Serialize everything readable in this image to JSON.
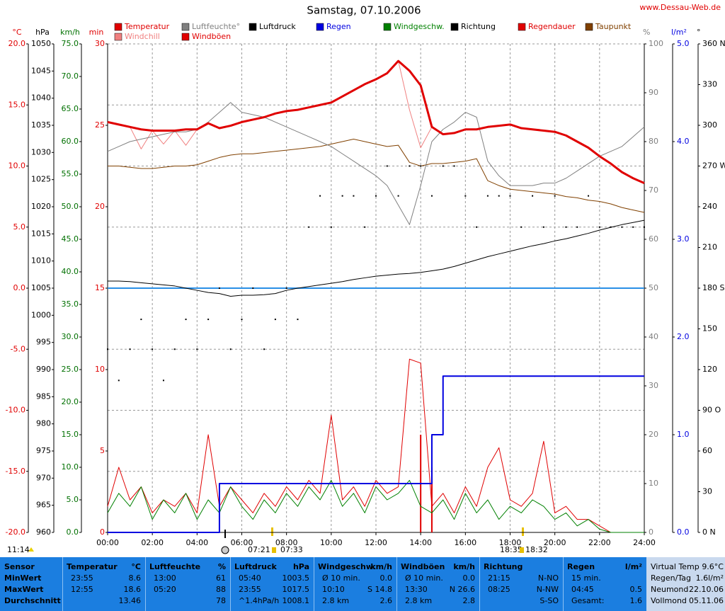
{
  "chart_data": {
    "type": "line",
    "title": "Samstag, 07.10.2006",
    "source": "www.Dessau-Web.de",
    "grid": true,
    "x": [
      0,
      0.5,
      1,
      1.5,
      2,
      2.5,
      3,
      3.5,
      4,
      4.5,
      5,
      5.5,
      6,
      6.5,
      7,
      7.5,
      8,
      8.5,
      9,
      9.5,
      10,
      10.5,
      11,
      11.5,
      12,
      12.5,
      13,
      13.5,
      14,
      14.5,
      15,
      15.5,
      16,
      16.5,
      17,
      17.5,
      18,
      18.5,
      19,
      19.5,
      20,
      20.5,
      21,
      21.5,
      22,
      22.5,
      23,
      23.5,
      24
    ],
    "xlim": [
      0,
      24
    ],
    "xticks": [
      {
        "value": 0,
        "label": "00:00"
      },
      {
        "value": 2,
        "label": "02:00"
      },
      {
        "value": 4,
        "label": "04:00"
      },
      {
        "value": 6,
        "label": "06:00"
      },
      {
        "value": 8,
        "label": "08:00"
      },
      {
        "value": 10,
        "label": "10:00"
      },
      {
        "value": 12,
        "label": "12:00"
      },
      {
        "value": 14,
        "label": "14:00"
      },
      {
        "value": 16,
        "label": "16:00"
      },
      {
        "value": 18,
        "label": "18:00"
      },
      {
        "value": 20,
        "label": "20:00"
      },
      {
        "value": 22,
        "label": "22:00"
      },
      {
        "value": 24,
        "label": "24:00"
      }
    ],
    "axes": [
      {
        "unit": "°C",
        "side": "left",
        "color": "#e00000",
        "lim": [
          -20,
          20
        ],
        "ticks": [
          {
            "value": -20,
            "label": "-20.0"
          },
          {
            "value": -15,
            "label": "-15.0"
          },
          {
            "value": -10,
            "label": "-10.0"
          },
          {
            "value": -5,
            "label": "-5.0"
          },
          {
            "value": 0,
            "label": "0.0"
          },
          {
            "value": 5,
            "label": "5.0"
          },
          {
            "value": 10,
            "label": "10.0"
          },
          {
            "value": 15,
            "label": "15.0"
          },
          {
            "value": 20,
            "label": "20.0"
          }
        ]
      },
      {
        "unit": "hPa",
        "side": "left",
        "color": "#000000",
        "lim": [
          960,
          1050
        ],
        "ticks": [
          960,
          965,
          970,
          975,
          980,
          985,
          990,
          995,
          1000,
          1005,
          1010,
          1015,
          1020,
          1025,
          1030,
          1035,
          1040,
          1045,
          1050
        ]
      },
      {
        "unit": "km/h",
        "side": "left",
        "color": "#007000",
        "lim": [
          0,
          75
        ],
        "ticks": [
          {
            "value": 0,
            "label": "0.0"
          },
          {
            "value": 5,
            "label": "5.0"
          },
          {
            "value": 10,
            "label": "10.0"
          },
          {
            "value": 15,
            "label": "15.0"
          },
          {
            "value": 20,
            "label": "20.0"
          },
          {
            "value": 25,
            "label": "25.0"
          },
          {
            "value": 30,
            "label": "30.0"
          },
          {
            "value": 35,
            "label": "35.0"
          },
          {
            "value": 40,
            "label": "40.0"
          },
          {
            "value": 45,
            "label": "45.0"
          },
          {
            "value": 50,
            "label": "50.0"
          },
          {
            "value": 55,
            "label": "55.0"
          },
          {
            "value": 60,
            "label": "60.0"
          },
          {
            "value": 65,
            "label": "65.0"
          },
          {
            "value": 70,
            "label": "70.0"
          },
          {
            "value": 75,
            "label": "75.0"
          }
        ]
      },
      {
        "unit": "min",
        "side": "left",
        "color": "#e00000",
        "lim": [
          0,
          30
        ],
        "ticks": [
          0,
          5,
          10,
          15,
          20,
          25,
          30
        ]
      },
      {
        "unit": "%",
        "side": "right",
        "color": "#808080",
        "lim": [
          0,
          100
        ],
        "ticks": [
          0,
          10,
          20,
          30,
          40,
          50,
          60,
          70,
          80,
          90,
          100
        ]
      },
      {
        "unit": "l/m²",
        "side": "right",
        "color": "#0000e0",
        "lim": [
          0,
          5
        ],
        "ticks": [
          {
            "value": 0,
            "label": "0.0"
          },
          {
            "value": 1,
            "label": "1.0"
          },
          {
            "value": 2,
            "label": "2.0"
          },
          {
            "value": 3,
            "label": "3.0"
          },
          {
            "value": 4,
            "label": "4.0"
          },
          {
            "value": 5,
            "label": "5.0"
          }
        ]
      },
      {
        "unit": "°",
        "side": "right",
        "color": "#000000",
        "lim": [
          0,
          360
        ],
        "ticks": [
          {
            "value": 0,
            "label": "0 N"
          },
          30,
          60,
          {
            "value": 90,
            "label": "90 O"
          },
          120,
          150,
          {
            "value": 180,
            "label": "180 S"
          },
          210,
          240,
          {
            "value": 270,
            "label": "270 W"
          },
          300,
          330,
          {
            "value": 360,
            "label": "360 N"
          }
        ]
      }
    ],
    "reference_line": {
      "axis": "°C",
      "value": 0,
      "color": "#2a8fe6"
    },
    "series": [
      {
        "name": "Temperatur",
        "color": "#e00000",
        "axis": "°C",
        "mark": "line",
        "line_width": 3,
        "values": [
          13.6,
          13.4,
          13.2,
          13.0,
          12.9,
          12.9,
          12.9,
          13.0,
          13.0,
          13.5,
          13.1,
          13.3,
          13.6,
          13.8,
          14.0,
          14.3,
          14.5,
          14.6,
          14.8,
          15.0,
          15.2,
          15.7,
          16.2,
          16.7,
          17.1,
          17.6,
          18.6,
          17.8,
          16.6,
          13.2,
          12.6,
          12.7,
          13.0,
          13.0,
          13.2,
          13.3,
          13.4,
          13.1,
          13.0,
          12.9,
          12.8,
          12.5,
          12.0,
          11.5,
          10.8,
          10.2,
          9.5,
          9.0,
          8.6
        ]
      },
      {
        "name": "Luftfeuchte°",
        "color": "#808080",
        "axis": "%",
        "mark": "line",
        "values": [
          78,
          79,
          80,
          80.5,
          81,
          81.5,
          82,
          82,
          82.5,
          84,
          86,
          88,
          86,
          85.5,
          85,
          84,
          83,
          82,
          81,
          80,
          79,
          77.5,
          76,
          74.5,
          73,
          71,
          67,
          63,
          71,
          80,
          82.5,
          84,
          86,
          85,
          76,
          73,
          71,
          71,
          71,
          71.5,
          71.5,
          72.5,
          74,
          75.5,
          77,
          78,
          79,
          81,
          83
        ]
      },
      {
        "name": "Luftdruck",
        "color": "#000000",
        "axis": "hPa",
        "mark": "line",
        "values": [
          1006.3,
          1006.3,
          1006.2,
          1006.0,
          1005.8,
          1005.6,
          1005.4,
          1005.0,
          1004.6,
          1004.2,
          1004.0,
          1003.5,
          1003.7,
          1003.7,
          1003.8,
          1004.0,
          1004.6,
          1005.0,
          1005.3,
          1005.6,
          1005.9,
          1006.2,
          1006.6,
          1006.9,
          1007.2,
          1007.4,
          1007.6,
          1007.7,
          1007.9,
          1008.2,
          1008.5,
          1009.0,
          1009.6,
          1010.2,
          1010.8,
          1011.3,
          1011.8,
          1012.3,
          1012.8,
          1013.2,
          1013.7,
          1014.1,
          1014.6,
          1015.1,
          1015.7,
          1016.2,
          1016.7,
          1017.1,
          1017.5
        ]
      },
      {
        "name": "Regen",
        "color": "#0000e0",
        "axis": "l/m²",
        "mark": "step",
        "line_width": 2,
        "values": [
          0,
          0,
          0,
          0,
          0,
          0,
          0,
          0,
          0,
          0,
          0.5,
          0.5,
          0.5,
          0.5,
          0.5,
          0.5,
          0.5,
          0.5,
          0.5,
          0.5,
          0.5,
          0.5,
          0.5,
          0.5,
          0.5,
          0.5,
          0.5,
          0.5,
          0.5,
          1.0,
          1.6,
          1.6,
          1.6,
          1.6,
          1.6,
          1.6,
          1.6,
          1.6,
          1.6,
          1.6,
          1.6,
          1.6,
          1.6,
          1.6,
          1.6,
          1.6,
          1.6,
          1.6,
          1.6
        ]
      },
      {
        "name": "Windgeschw.",
        "color": "#008000",
        "axis": "km/h",
        "mark": "line",
        "values": [
          3,
          6,
          4,
          7,
          2,
          5,
          3,
          6,
          2,
          5,
          3,
          7,
          4,
          2,
          5,
          3,
          6,
          4,
          7,
          5,
          8,
          4,
          6,
          3,
          7,
          5,
          6,
          8,
          4,
          3,
          5,
          2,
          6,
          3,
          5,
          2,
          4,
          3,
          5,
          4,
          2,
          3,
          1,
          2,
          0.5,
          0,
          0,
          0,
          0
        ]
      },
      {
        "name": "Richtung",
        "color": "#000000",
        "axis": "°",
        "mark": "dots",
        "values": [
          135,
          112,
          135,
          157,
          135,
          112,
          135,
          157,
          135,
          157,
          180,
          135,
          157,
          180,
          135,
          157,
          180,
          157,
          225,
          248,
          225,
          248,
          248,
          225,
          248,
          270,
          248,
          270,
          270,
          248,
          270,
          270,
          248,
          225,
          248,
          248,
          248,
          225,
          248,
          225,
          248,
          225,
          225,
          248,
          225,
          225,
          225,
          225,
          225
        ]
      },
      {
        "name": "Regendauer",
        "color": "#e00000",
        "axis": "min",
        "mark": "impulse",
        "values": [
          0,
          0,
          0,
          0,
          0,
          0,
          0,
          0,
          0,
          0,
          0,
          0,
          0,
          0,
          0,
          0,
          0,
          0,
          0,
          0,
          0,
          0,
          0,
          0,
          0,
          0,
          0,
          0,
          6,
          4,
          0,
          0,
          0,
          0,
          0,
          0,
          0,
          0,
          0,
          0,
          0,
          0,
          0,
          0,
          0,
          0,
          0,
          0,
          0
        ]
      },
      {
        "name": "Taupunkt",
        "color": "#804000",
        "axis": "°C",
        "mark": "line",
        "values": [
          10.0,
          10.0,
          9.9,
          9.8,
          9.8,
          9.9,
          10.0,
          10.0,
          10.1,
          10.4,
          10.7,
          10.9,
          11.0,
          11.0,
          11.1,
          11.2,
          11.3,
          11.4,
          11.5,
          11.6,
          11.8,
          12.0,
          12.2,
          12.0,
          11.8,
          11.6,
          11.7,
          10.3,
          10.0,
          10.2,
          10.2,
          10.3,
          10.4,
          10.6,
          8.8,
          8.4,
          8.1,
          8.0,
          7.9,
          7.8,
          7.7,
          7.5,
          7.4,
          7.2,
          7.1,
          6.9,
          6.6,
          6.4,
          6.2
        ]
      },
      {
        "name": "Windchill",
        "color": "#f08080",
        "axis": "°C",
        "mark": "line",
        "values": [
          13.6,
          13.4,
          13.2,
          11.4,
          12.9,
          11.8,
          12.9,
          11.7,
          13.0,
          13.5,
          13.1,
          13.3,
          13.6,
          13.8,
          14.0,
          14.3,
          14.5,
          14.6,
          14.8,
          15.0,
          15.2,
          15.7,
          16.2,
          16.7,
          17.1,
          17.6,
          18.6,
          14.6,
          11.5,
          13.2,
          12.6,
          12.7,
          13.0,
          13.0,
          13.2,
          13.3,
          13.4,
          13.1,
          13.0,
          12.9,
          12.8,
          12.5,
          12.0,
          11.5,
          10.8,
          10.2,
          9.5,
          9.0,
          8.6
        ]
      },
      {
        "name": "Windböen",
        "color": "#e00000",
        "axis": "km/h",
        "mark": "line",
        "values": [
          4,
          10,
          5,
          7,
          3,
          5,
          4,
          6,
          3,
          15,
          4,
          7,
          5,
          3,
          6,
          4,
          7,
          5,
          8,
          6,
          18,
          5,
          7,
          4,
          8,
          6,
          7,
          26.6,
          26,
          4,
          6,
          3,
          7,
          4,
          10,
          13,
          5,
          4,
          6,
          14,
          3,
          4,
          2,
          2,
          1,
          0,
          0,
          0,
          0
        ]
      }
    ],
    "sun_moon": [
      "11:14",
      "07:21",
      "07:33",
      "18:35",
      "18:32"
    ]
  },
  "table": {
    "sensor": {
      "header": "Sensor",
      "rows": [
        "MinWert",
        "MaxWert",
        "Durchschnitt"
      ]
    },
    "columns": [
      {
        "header": "Temperatur",
        "unit": "°C",
        "rows": [
          {
            "left": "23:55",
            "right": "8.6"
          },
          {
            "left": "12:55",
            "right": "18.6"
          },
          {
            "right": "13.46"
          }
        ]
      },
      {
        "header": "Luftfeuchte",
        "unit": "%",
        "rows": [
          {
            "left": "13:00",
            "right": "61"
          },
          {
            "left": "05:20",
            "right": "88"
          },
          {
            "right": "78"
          }
        ]
      },
      {
        "header": "Luftdruck",
        "unit": "hPa",
        "rows": [
          {
            "left": "05:40",
            "right": "1003.5"
          },
          {
            "left": "23:55",
            "right": "1017.5"
          },
          {
            "left": "^1.4hPa/h",
            "right": "1008.1"
          }
        ]
      },
      {
        "header": "Windgeschw.",
        "unit": "km/h",
        "rows": [
          {
            "left": "Ø 10 min.",
            "right": "0.0"
          },
          {
            "left": "10:10",
            "right": "S 14.8"
          },
          {
            "left": "2.8 km",
            "right": "2.6"
          }
        ]
      },
      {
        "header": "Windböen",
        "unit": "km/h",
        "rows": [
          {
            "left": "Ø 10 min.",
            "right": "0.0"
          },
          {
            "left": "13:30",
            "right": "N 26.6"
          },
          {
            "left": "2.8 km",
            "right": "2.8"
          }
        ]
      },
      {
        "header": "Richtung",
        "rows": [
          {
            "left": "21:15",
            "right": "N-NO"
          },
          {
            "left": "08:25",
            "right": "N-NW"
          },
          {
            "right": "S-SO"
          }
        ]
      },
      {
        "header": "Regen",
        "unit": "l/m²",
        "rows": [
          {
            "left": "15 min."
          },
          {
            "left": "04:45",
            "right": "0.5"
          },
          {
            "left": "Gesamt:",
            "right": "1.6"
          }
        ]
      }
    ],
    "info": [
      [
        "Virtual Temp",
        "9.6°C"
      ],
      [
        "Regen/Tag",
        "1.6l/m²"
      ],
      [
        "Neumond",
        "22.10.06"
      ],
      [
        "Vollmond",
        "05.11.06"
      ]
    ]
  }
}
